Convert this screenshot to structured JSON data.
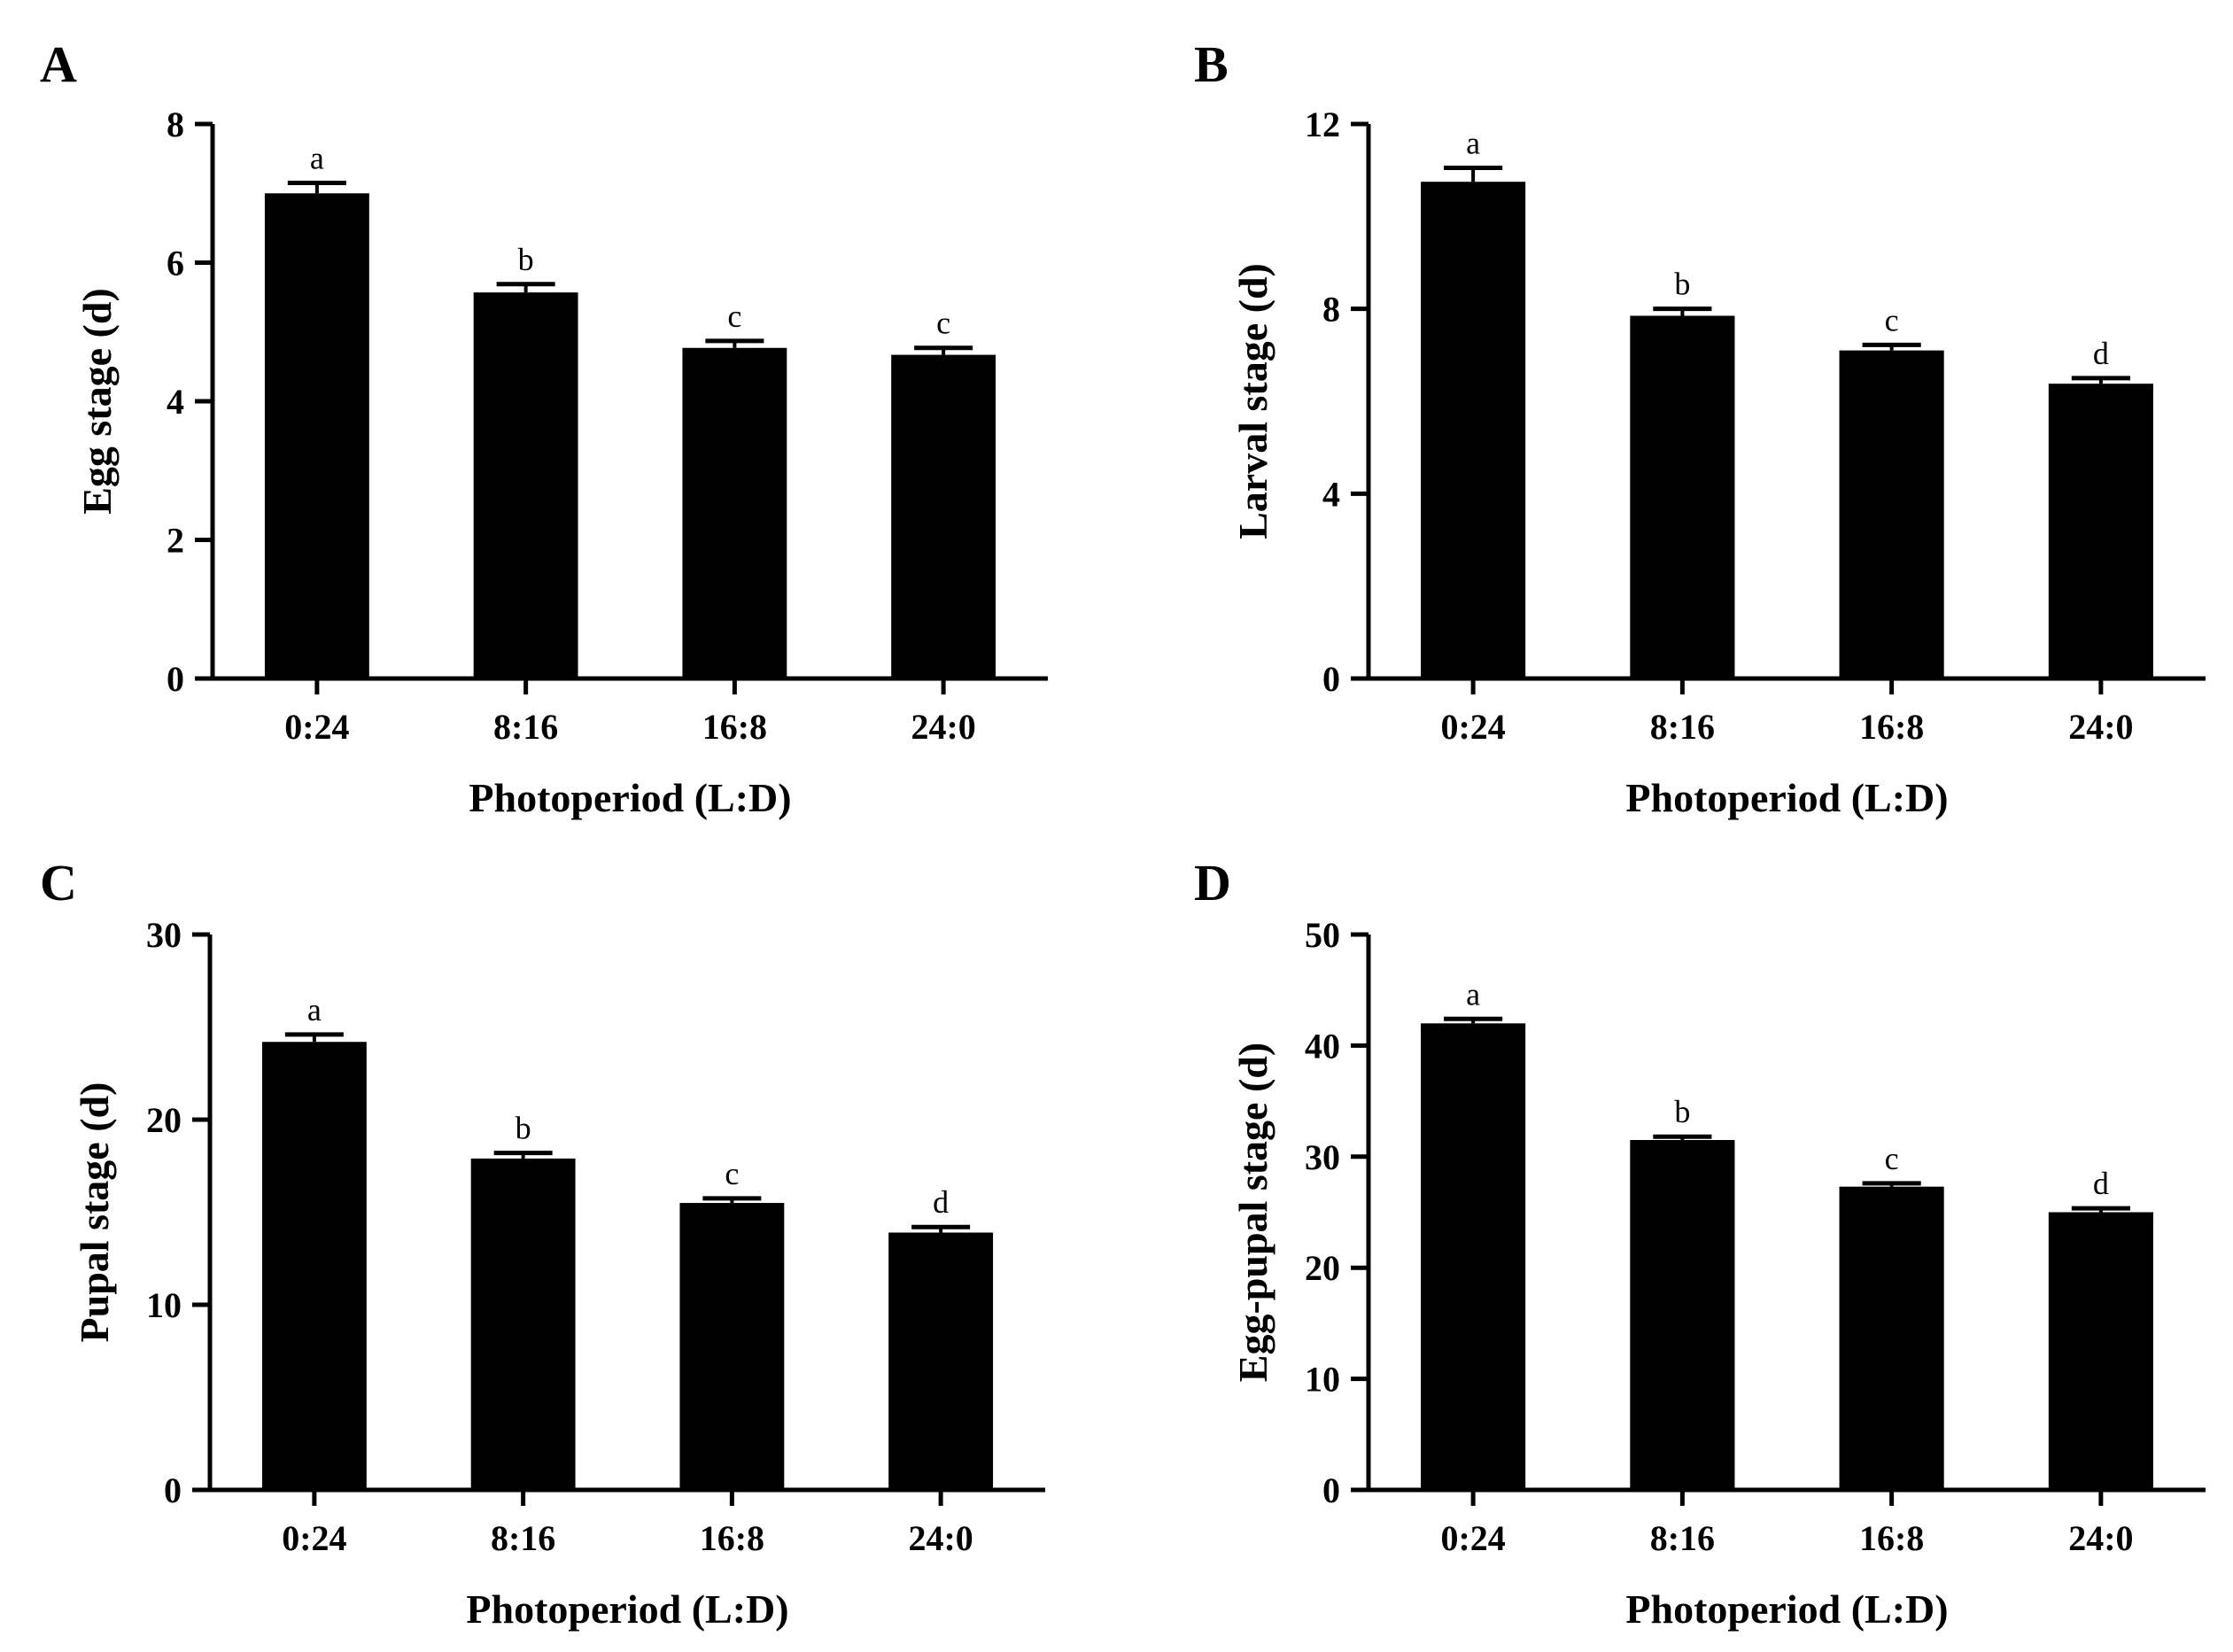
{
  "chart_data": [
    {
      "type": "bar",
      "panel": "A",
      "categories": [
        "0:24",
        "8:16",
        "16:8",
        "24:0"
      ],
      "values": [
        7.0,
        5.57,
        4.77,
        4.67
      ],
      "errors": [
        0.15,
        0.12,
        0.1,
        0.1
      ],
      "significance": [
        "a",
        "b",
        "c",
        "c"
      ],
      "xlabel": "Photoperiod (L:D)",
      "ylabel": "Egg stage (d)",
      "ylim": [
        0,
        8
      ],
      "yticks": [
        0,
        2,
        4,
        6,
        8
      ],
      "color": "#000000"
    },
    {
      "type": "bar",
      "panel": "B",
      "categories": [
        "0:24",
        "8:16",
        "16:8",
        "24:0"
      ],
      "values": [
        10.75,
        7.85,
        7.1,
        6.38
      ],
      "errors": [
        0.3,
        0.15,
        0.12,
        0.12
      ],
      "significance": [
        "a",
        "b",
        "c",
        "d"
      ],
      "xlabel": "Photoperiod (L:D)",
      "ylabel": "Larval stage (d)",
      "ylim": [
        0,
        12
      ],
      "yticks": [
        0,
        4,
        8,
        12
      ],
      "color": "#000000"
    },
    {
      "type": "bar",
      "panel": "C",
      "categories": [
        "0:24",
        "8:16",
        "16:8",
        "24:0"
      ],
      "values": [
        24.2,
        17.9,
        15.5,
        13.9
      ],
      "errors": [
        0.4,
        0.3,
        0.25,
        0.3
      ],
      "significance": [
        "a",
        "b",
        "c",
        "d"
      ],
      "xlabel": "Photoperiod (L:D)",
      "ylabel": "Pupal stage (d)",
      "ylim": [
        0,
        30
      ],
      "yticks": [
        0,
        10,
        20,
        30
      ],
      "color": "#000000"
    },
    {
      "type": "bar",
      "panel": "D",
      "categories": [
        "0:24",
        "8:16",
        "16:8",
        "24:0"
      ],
      "values": [
        42.0,
        31.5,
        27.3,
        25.0
      ],
      "errors": [
        0.4,
        0.3,
        0.3,
        0.35
      ],
      "significance": [
        "a",
        "b",
        "c",
        "d"
      ],
      "xlabel": "Photoperiod (L:D)",
      "ylabel": "Egg-pupal stage (d)",
      "ylim": [
        0,
        50
      ],
      "yticks": [
        0,
        10,
        20,
        30,
        40,
        50
      ],
      "color": "#000000"
    }
  ]
}
